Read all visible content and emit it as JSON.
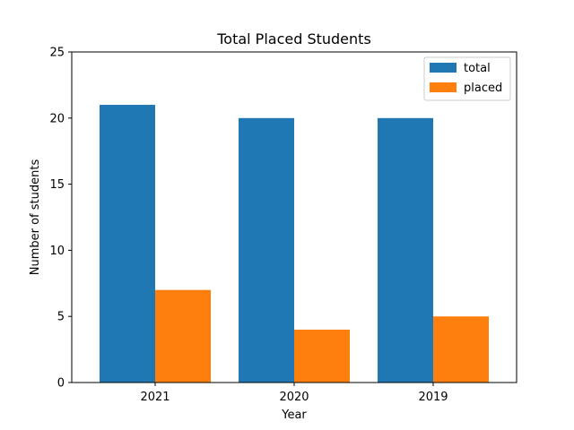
{
  "chart_data": {
    "type": "bar",
    "title": "Total Placed Students",
    "xlabel": "Year",
    "ylabel": "Number of students",
    "categories": [
      "2021",
      "2020",
      "2019"
    ],
    "series": [
      {
        "name": "total",
        "color": "#1f77b4",
        "values": [
          21,
          20,
          20
        ]
      },
      {
        "name": "placed",
        "color": "#ff7f0e",
        "values": [
          7,
          4,
          5
        ]
      }
    ],
    "ylim": [
      0,
      25
    ],
    "yticks": [
      0,
      5,
      10,
      15,
      20,
      25
    ],
    "grid": false,
    "legend_position": "top-right"
  }
}
